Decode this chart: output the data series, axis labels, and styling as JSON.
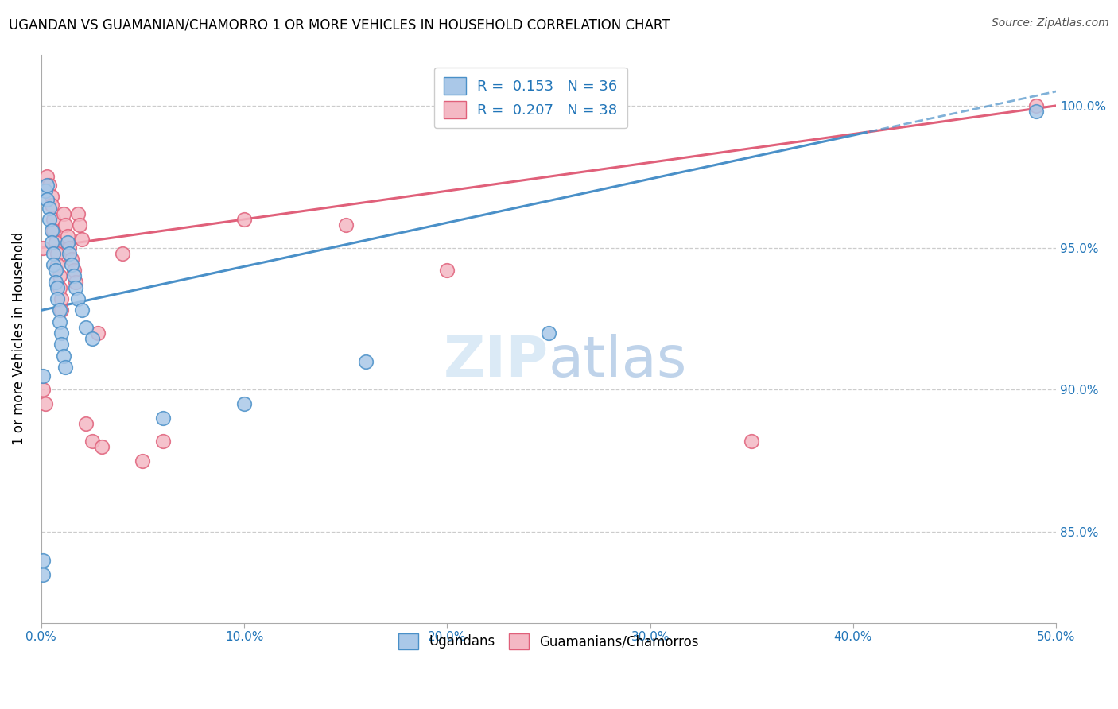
{
  "title": "UGANDAN VS GUAMANIAN/CHAMORRO 1 OR MORE VEHICLES IN HOUSEHOLD CORRELATION CHART",
  "source": "Source: ZipAtlas.com",
  "ylabel": "1 or more Vehicles in Household",
  "yaxis_labels": [
    "100.0%",
    "95.0%",
    "90.0%",
    "85.0%"
  ],
  "yaxis_values": [
    1.0,
    0.95,
    0.9,
    0.85
  ],
  "legend_label1": "Ugandans",
  "legend_label2": "Guamanians/Chamorros",
  "R1": "0.153",
  "N1": "36",
  "R2": "0.207",
  "N2": "38",
  "color_blue": "#aac8e8",
  "color_pink": "#f4b8c4",
  "color_blue_dark": "#4a90c8",
  "color_pink_dark": "#e0607a",
  "xmin": 0.0,
  "xmax": 0.5,
  "ymin": 0.818,
  "ymax": 1.018,
  "ugandan_x": [
    0.001,
    0.001,
    0.002,
    0.003,
    0.003,
    0.004,
    0.004,
    0.005,
    0.005,
    0.006,
    0.006,
    0.007,
    0.007,
    0.008,
    0.008,
    0.009,
    0.009,
    0.01,
    0.01,
    0.011,
    0.012,
    0.013,
    0.014,
    0.015,
    0.016,
    0.017,
    0.018,
    0.02,
    0.022,
    0.025,
    0.06,
    0.1,
    0.16,
    0.25,
    0.49,
    0.001
  ],
  "ugandan_y": [
    0.84,
    0.835,
    0.97,
    0.972,
    0.967,
    0.964,
    0.96,
    0.956,
    0.952,
    0.948,
    0.944,
    0.942,
    0.938,
    0.936,
    0.932,
    0.928,
    0.924,
    0.92,
    0.916,
    0.912,
    0.908,
    0.952,
    0.948,
    0.944,
    0.94,
    0.936,
    0.932,
    0.928,
    0.922,
    0.918,
    0.89,
    0.895,
    0.91,
    0.92,
    0.998,
    0.905
  ],
  "guamanian_x": [
    0.001,
    0.002,
    0.003,
    0.004,
    0.005,
    0.005,
    0.006,
    0.006,
    0.007,
    0.008,
    0.008,
    0.009,
    0.009,
    0.01,
    0.01,
    0.011,
    0.012,
    0.013,
    0.014,
    0.015,
    0.016,
    0.017,
    0.018,
    0.019,
    0.02,
    0.022,
    0.025,
    0.028,
    0.03,
    0.04,
    0.05,
    0.06,
    0.1,
    0.15,
    0.2,
    0.35,
    0.49,
    0.001
  ],
  "guamanian_y": [
    0.9,
    0.895,
    0.975,
    0.972,
    0.968,
    0.965,
    0.96,
    0.956,
    0.952,
    0.948,
    0.944,
    0.94,
    0.936,
    0.932,
    0.928,
    0.962,
    0.958,
    0.954,
    0.95,
    0.946,
    0.942,
    0.938,
    0.962,
    0.958,
    0.953,
    0.888,
    0.882,
    0.92,
    0.88,
    0.948,
    0.875,
    0.882,
    0.96,
    0.958,
    0.942,
    0.882,
    1.0,
    0.95
  ],
  "trendline_blue_y0": 0.93,
  "trendline_blue_y1": 1.005,
  "trendline_pink_y0": 0.95,
  "trendline_pink_y1": 1.0
}
